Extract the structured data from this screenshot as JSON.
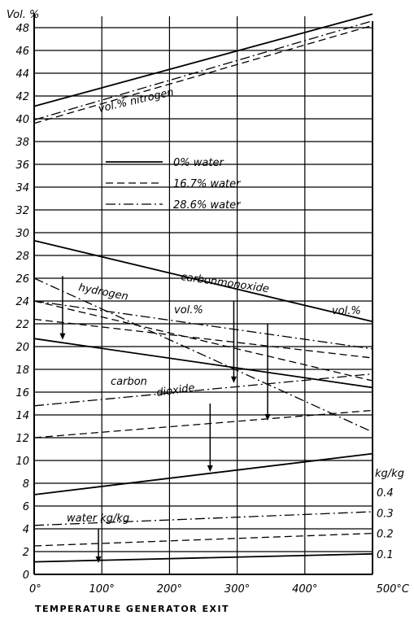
{
  "chart_data": {
    "type": "line",
    "ylabel": "Vol. %",
    "xlabel": "TEMPERATURE GENERATOR EXIT",
    "xlim": [
      0,
      500
    ],
    "ylim": [
      0,
      49
    ],
    "y_ticks": [
      0,
      2,
      4,
      6,
      8,
      10,
      12,
      14,
      16,
      18,
      20,
      22,
      24,
      26,
      28,
      30,
      32,
      34,
      36,
      38,
      40,
      42,
      44,
      46,
      48
    ],
    "y_tick_labels": [
      "0",
      "2",
      "4",
      "6",
      "8",
      "10",
      "12",
      "14",
      "16",
      "18",
      "20",
      "22",
      "24",
      "26",
      "28",
      "30",
      "32",
      "34",
      "36",
      "38",
      "40",
      "42",
      "44",
      "46",
      "48"
    ],
    "x_ticks": [
      0,
      100,
      200,
      300,
      400,
      500
    ],
    "x_tick_labels": [
      "0°",
      "100°",
      "200°",
      "300°",
      "400°",
      "500°C"
    ],
    "right_axis": {
      "label": "kg/kg",
      "ticks": [
        {
          "value": "0.1",
          "y": 1.8
        },
        {
          "value": "0.2",
          "y": 3.6
        },
        {
          "value": "0.3",
          "y": 5.4
        },
        {
          "value": "0.4",
          "y": 7.2
        }
      ]
    },
    "grid": true,
    "legend": {
      "position": "upper-left",
      "entries": [
        {
          "label": "0% water",
          "style": "solid"
        },
        {
          "label": "16.7% water",
          "style": "dashed"
        },
        {
          "label": "28.6% water",
          "style": "dashdot"
        }
      ]
    },
    "annotations": {
      "nitrogen": "vol.%   nitrogen",
      "carbonmonoxide": "carbonmonoxide",
      "co_vol": "vol.%",
      "hydrogen": "hydrogen",
      "h2_vol": "vol.%",
      "carbon": "carbon",
      "dioxide": "dioxide",
      "water": "water kg/kg"
    },
    "series": [
      {
        "component": "nitrogen",
        "name": "vol.%   nitrogen",
        "water": "0%",
        "style": "solid",
        "x": [
          0,
          500
        ],
        "y": [
          41.1,
          49.2
        ]
      },
      {
        "component": "nitrogen",
        "water": "16.7%",
        "style": "dashed",
        "x": [
          0,
          500
        ],
        "y": [
          39.6,
          48.2
        ]
      },
      {
        "component": "nitrogen",
        "water": "28.6%",
        "style": "dashdot",
        "x": [
          0,
          500
        ],
        "y": [
          39.9,
          48.6
        ]
      },
      {
        "component": "carbonmonoxide",
        "name": "carbonmonoxide",
        "water": "0%",
        "style": "solid",
        "x": [
          0,
          500
        ],
        "y": [
          29.3,
          22.2
        ]
      },
      {
        "component": "carbonmonoxide",
        "water": "16.7%",
        "style": "dashed",
        "x": [
          0,
          500
        ],
        "y": [
          24.0,
          17.0
        ]
      },
      {
        "component": "carbonmonoxide",
        "water": "28.6%",
        "style": "dashdot",
        "x": [
          0,
          500
        ],
        "y": [
          26.0,
          12.5
        ]
      },
      {
        "component": "hydrogen",
        "name": "hydrogen",
        "water": "0%",
        "style": "solid",
        "x": [
          0,
          500
        ],
        "y": [
          20.7,
          16.4
        ]
      },
      {
        "component": "hydrogen",
        "water": "16.7%",
        "style": "dashed",
        "x": [
          0,
          500
        ],
        "y": [
          22.4,
          19.0
        ]
      },
      {
        "component": "hydrogen",
        "water": "28.6%",
        "style": "dashdot",
        "x": [
          0,
          500
        ],
        "y": [
          24.0,
          19.8
        ]
      },
      {
        "component": "carbon dioxide",
        "name": "carbon dioxide",
        "water": "0%",
        "style": "solid",
        "x": [
          0,
          500
        ],
        "y": [
          7.0,
          10.6
        ]
      },
      {
        "component": "carbon dioxide",
        "water": "16.7%",
        "style": "dashed",
        "x": [
          0,
          500
        ],
        "y": [
          12.0,
          14.4
        ]
      },
      {
        "component": "carbon dioxide",
        "water": "28.6%",
        "style": "dashdot",
        "x": [
          0,
          500
        ],
        "y": [
          14.8,
          17.6
        ]
      },
      {
        "component": "water",
        "name": "water kg/kg",
        "water": "0%",
        "style": "solid",
        "x": [
          0,
          500
        ],
        "y": [
          1.1,
          1.8
        ]
      },
      {
        "component": "water",
        "water": "16.7%",
        "style": "dashed",
        "x": [
          0,
          500
        ],
        "y": [
          2.5,
          3.6
        ]
      },
      {
        "component": "water",
        "water": "28.6%",
        "style": "dashdot",
        "x": [
          0,
          500
        ],
        "y": [
          4.3,
          5.5
        ]
      }
    ],
    "arrows": [
      {
        "x": 42,
        "from": 26.2,
        "to": 20.6
      },
      {
        "x": 295,
        "from": 24.0,
        "to": 16.8
      },
      {
        "x": 345,
        "from": 22.0,
        "to": 13.5
      },
      {
        "x": 260,
        "from": 15.0,
        "to": 9.0
      },
      {
        "x": 95,
        "from": 4.0,
        "to": 1.0
      }
    ]
  }
}
